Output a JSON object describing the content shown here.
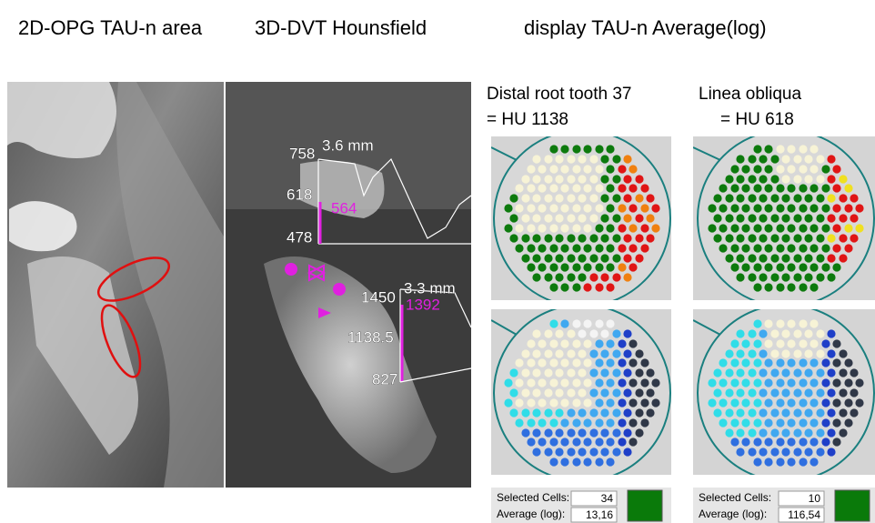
{
  "headings": [
    "2D-OPG TAU-n area",
    "3D-DVT Hounsfield",
    "display TAU-n Average(log)"
  ],
  "ct": {
    "upper": {
      "values": [
        "758",
        "618",
        "478"
      ],
      "distance": "3.6 mm",
      "marker": "564"
    },
    "lower": {
      "values": [
        "1450",
        "1138.5",
        "827"
      ],
      "distance": "3.3 mm",
      "marker": "1392"
    }
  },
  "panels": [
    {
      "title": "Distal root tooth 37",
      "hu": "= HU 1138",
      "selected_label": "Selected Cells:",
      "selected": "34",
      "average_label": "Average (log):",
      "average": "13,16"
    },
    {
      "title": "Linea obliqua",
      "hu": "= HU 618",
      "selected_label": "Selected Cells:",
      "selected": "10",
      "average_label": "Average (log):",
      "average": "116,54"
    }
  ]
}
